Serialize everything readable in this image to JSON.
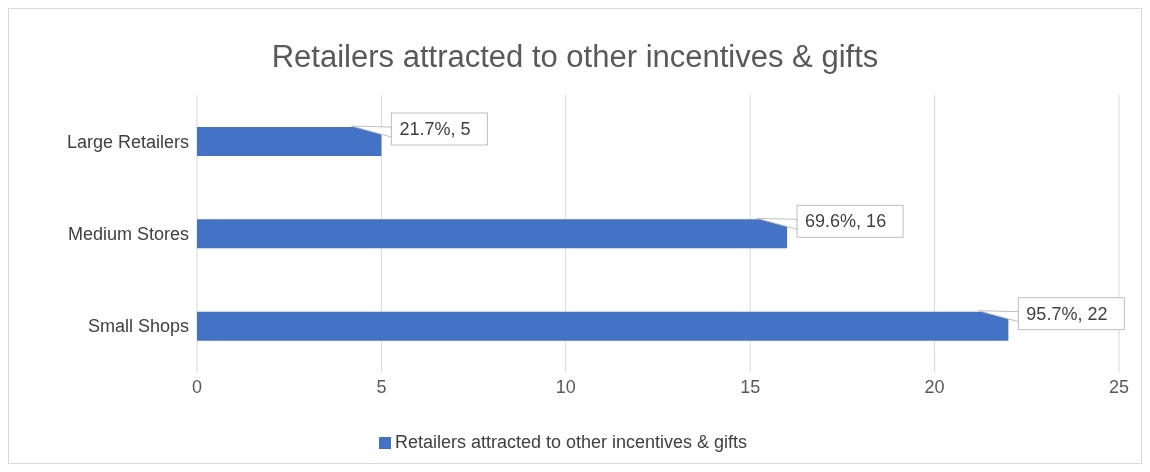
{
  "chart_data": {
    "type": "bar",
    "orientation": "horizontal",
    "title": "Retailers attracted to other incentives & gifts",
    "categories": [
      "Large Retailers",
      "Medium Stores",
      "Small Shops"
    ],
    "series": [
      {
        "name": "Retailers attracted to other incentives & gifts",
        "color": "#4472c4",
        "values": [
          5,
          16,
          22
        ],
        "value_labels": [
          "21.7%, 5",
          "69.6%, 16",
          "95.7%, 22"
        ]
      }
    ],
    "xlim": [
      0,
      25
    ],
    "xticks": [
      0,
      5,
      10,
      15,
      20,
      25
    ],
    "grid": "x",
    "legend": "bottom"
  }
}
